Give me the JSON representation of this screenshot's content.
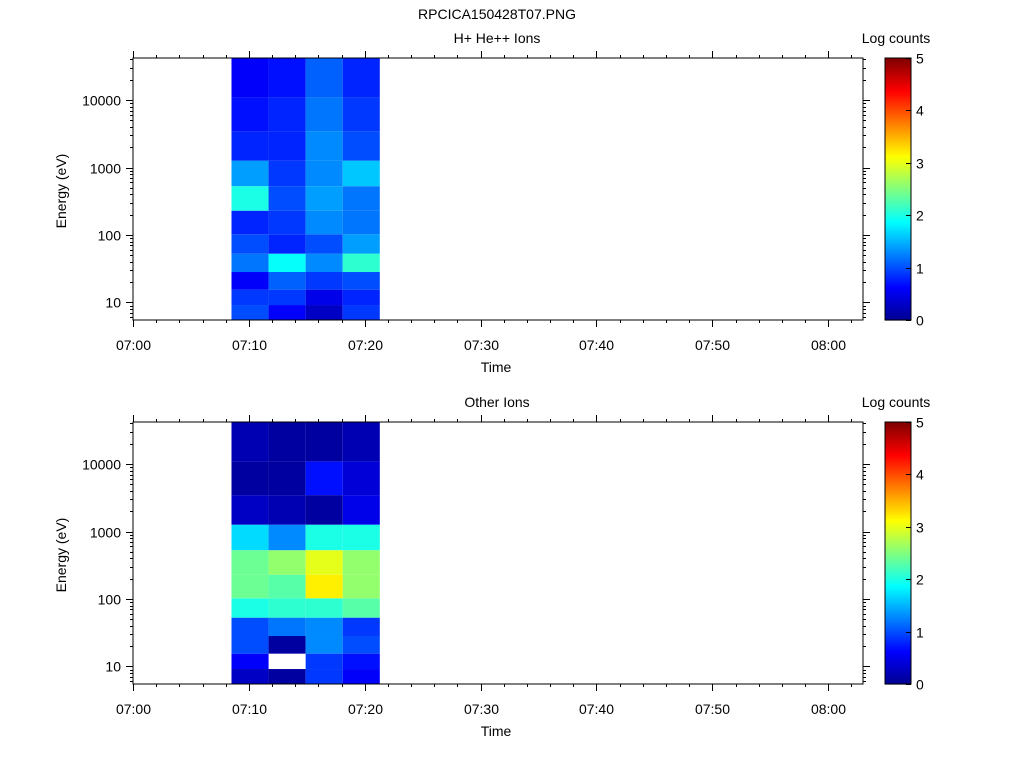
{
  "figure_title": "RPCICA150428T07.PNG",
  "colors": {
    "colormap": [
      "#00008f",
      "#0000ff",
      "#0080ff",
      "#00ffff",
      "#80ff80",
      "#ffff00",
      "#ff8000",
      "#ff0000",
      "#800000"
    ]
  },
  "chart_data": [
    {
      "type": "heatmap",
      "title": "H+ He++ Ions",
      "xlabel": "Time",
      "ylabel": "Energy (eV)",
      "colorbar_label": "Log counts",
      "x_ticks": [
        "07:00",
        "07:10",
        "07:20",
        "07:30",
        "07:40",
        "07:50",
        "08:00"
      ],
      "x_range_minutes": [
        0,
        63
      ],
      "y_scale": "log",
      "y_range": [
        5.5,
        42000
      ],
      "y_ticks": [
        10,
        100,
        1000,
        10000
      ],
      "y_tick_labels": [
        "10",
        "100",
        "1000",
        "10000"
      ],
      "colorbar_range": [
        0,
        5
      ],
      "colorbar_ticks": [
        "0",
        "1",
        "2",
        "3",
        "4",
        "5"
      ],
      "time_bins_minutes": [
        [
          8.5,
          11.7
        ],
        [
          11.7,
          14.9
        ],
        [
          14.9,
          18.1
        ],
        [
          18.1,
          21.3
        ]
      ],
      "energy_levels_eV": [
        7,
        12,
        20,
        40,
        70,
        150,
        350,
        800,
        2000,
        6000,
        20000
      ],
      "log_counts": [
        [
          1.0,
          0.6,
          0.3,
          0.9
        ],
        [
          0.9,
          0.9,
          0.5,
          0.8
        ],
        [
          0.6,
          1.1,
          0.9,
          1.0
        ],
        [
          1.2,
          1.9,
          1.3,
          2.1
        ],
        [
          1.0,
          0.8,
          1.0,
          1.4
        ],
        [
          0.8,
          0.9,
          1.3,
          1.2
        ],
        [
          2.0,
          1.0,
          1.4,
          1.2
        ],
        [
          1.4,
          0.9,
          1.3,
          1.6
        ],
        [
          0.8,
          0.8,
          1.3,
          1.0
        ],
        [
          0.7,
          0.8,
          1.2,
          0.9
        ],
        [
          0.6,
          0.7,
          1.1,
          0.8
        ]
      ]
    },
    {
      "type": "heatmap",
      "title": "Other Ions",
      "xlabel": "Time",
      "ylabel": "Energy (eV)",
      "colorbar_label": "Log counts",
      "x_ticks": [
        "07:00",
        "07:10",
        "07:20",
        "07:30",
        "07:40",
        "07:50",
        "08:00"
      ],
      "x_range_minutes": [
        0,
        63
      ],
      "y_scale": "log",
      "y_range": [
        5.5,
        42000
      ],
      "y_ticks": [
        10,
        100,
        1000,
        10000
      ],
      "y_tick_labels": [
        "10",
        "100",
        "1000",
        "10000"
      ],
      "colorbar_range": [
        0,
        5
      ],
      "colorbar_ticks": [
        "0",
        "1",
        "2",
        "3",
        "4",
        "5"
      ],
      "time_bins_minutes": [
        [
          8.5,
          11.7
        ],
        [
          11.7,
          14.9
        ],
        [
          14.9,
          18.1
        ],
        [
          18.1,
          21.3
        ]
      ],
      "energy_levels_eV": [
        7,
        12,
        20,
        40,
        70,
        150,
        350,
        800,
        2000,
        6000,
        20000
      ],
      "log_counts": [
        [
          0.3,
          0.1,
          0.9,
          0.6
        ],
        [
          0.6,
          null,
          0.9,
          0.7
        ],
        [
          1.0,
          0.1,
          1.3,
          1.0
        ],
        [
          1.0,
          1.2,
          1.3,
          0.9
        ],
        [
          2.0,
          2.1,
          2.1,
          2.3
        ],
        [
          2.4,
          2.3,
          3.2,
          2.6
        ],
        [
          2.4,
          2.6,
          3.0,
          2.6
        ],
        [
          1.7,
          1.3,
          2.0,
          2.0
        ],
        [
          0.3,
          0.2,
          0.1,
          0.5
        ],
        [
          0.1,
          0.1,
          0.7,
          0.4
        ],
        [
          0.2,
          0.1,
          0.1,
          0.2
        ]
      ]
    }
  ]
}
